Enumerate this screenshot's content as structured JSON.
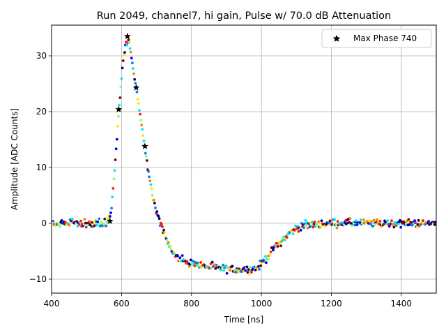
{
  "chart_data": {
    "type": "scatter",
    "title": "Run 2049, channel7, hi gain, Pulse w/ 70.0 dB Attenuation",
    "xlabel": "Time [ns]",
    "ylabel": "Amplitude [ADC Counts]",
    "xlim": [
      400,
      1500
    ],
    "ylim": [
      -12.5,
      35.5
    ],
    "xticks": [
      400,
      600,
      800,
      1000,
      1200,
      1400
    ],
    "xtick_labels": [
      "400",
      "600",
      "800",
      "1000",
      "1200",
      "1400"
    ],
    "yticks": [
      -10,
      0,
      10,
      20,
      30
    ],
    "ytick_labels": [
      "−10",
      "0",
      "10",
      "20",
      "30"
    ],
    "grid": true,
    "legend": {
      "location": "top-right",
      "entries": [
        "Max Phase 740"
      ]
    },
    "colormap": [
      "#00007f",
      "#0000ff",
      "#007fff",
      "#00e5ff",
      "#7fff7f",
      "#ffe500",
      "#ff7f00",
      "#ff1a00",
      "#7f0000"
    ],
    "series": [
      {
        "name": "Max Phase 740",
        "marker": "star",
        "color": "#000000",
        "x": [
          567,
          592,
          617,
          642,
          667
        ],
        "y": [
          0.4,
          20.4,
          33.5,
          24.3,
          13.8
        ]
      }
    ],
    "waveform": {
      "name": "all phases",
      "marker": "dot",
      "x": [
        400,
        560,
        570,
        580,
        590,
        600,
        605,
        612,
        618,
        622,
        630,
        640,
        650,
        660,
        670,
        680,
        690,
        700,
        710,
        720,
        730,
        740,
        750,
        760,
        780,
        800,
        850,
        900,
        950,
        990,
        1000,
        1020,
        1040,
        1060,
        1080,
        1100,
        1120,
        1150,
        1200,
        1250,
        1300,
        1400,
        1500
      ],
      "y": [
        0,
        0,
        2,
        9,
        18,
        26,
        29.5,
        32,
        32.5,
        32,
        29,
        25,
        21,
        16.5,
        12,
        8,
        4.5,
        2,
        0,
        -1.5,
        -3,
        -4.5,
        -5.5,
        -6.2,
        -6.8,
        -7.2,
        -7.8,
        -8.2,
        -8.3,
        -8,
        -7.2,
        -5.8,
        -4.2,
        -3,
        -1.8,
        -0.9,
        -0.4,
        -0.2,
        0,
        0.1,
        0,
        0,
        0
      ]
    }
  }
}
